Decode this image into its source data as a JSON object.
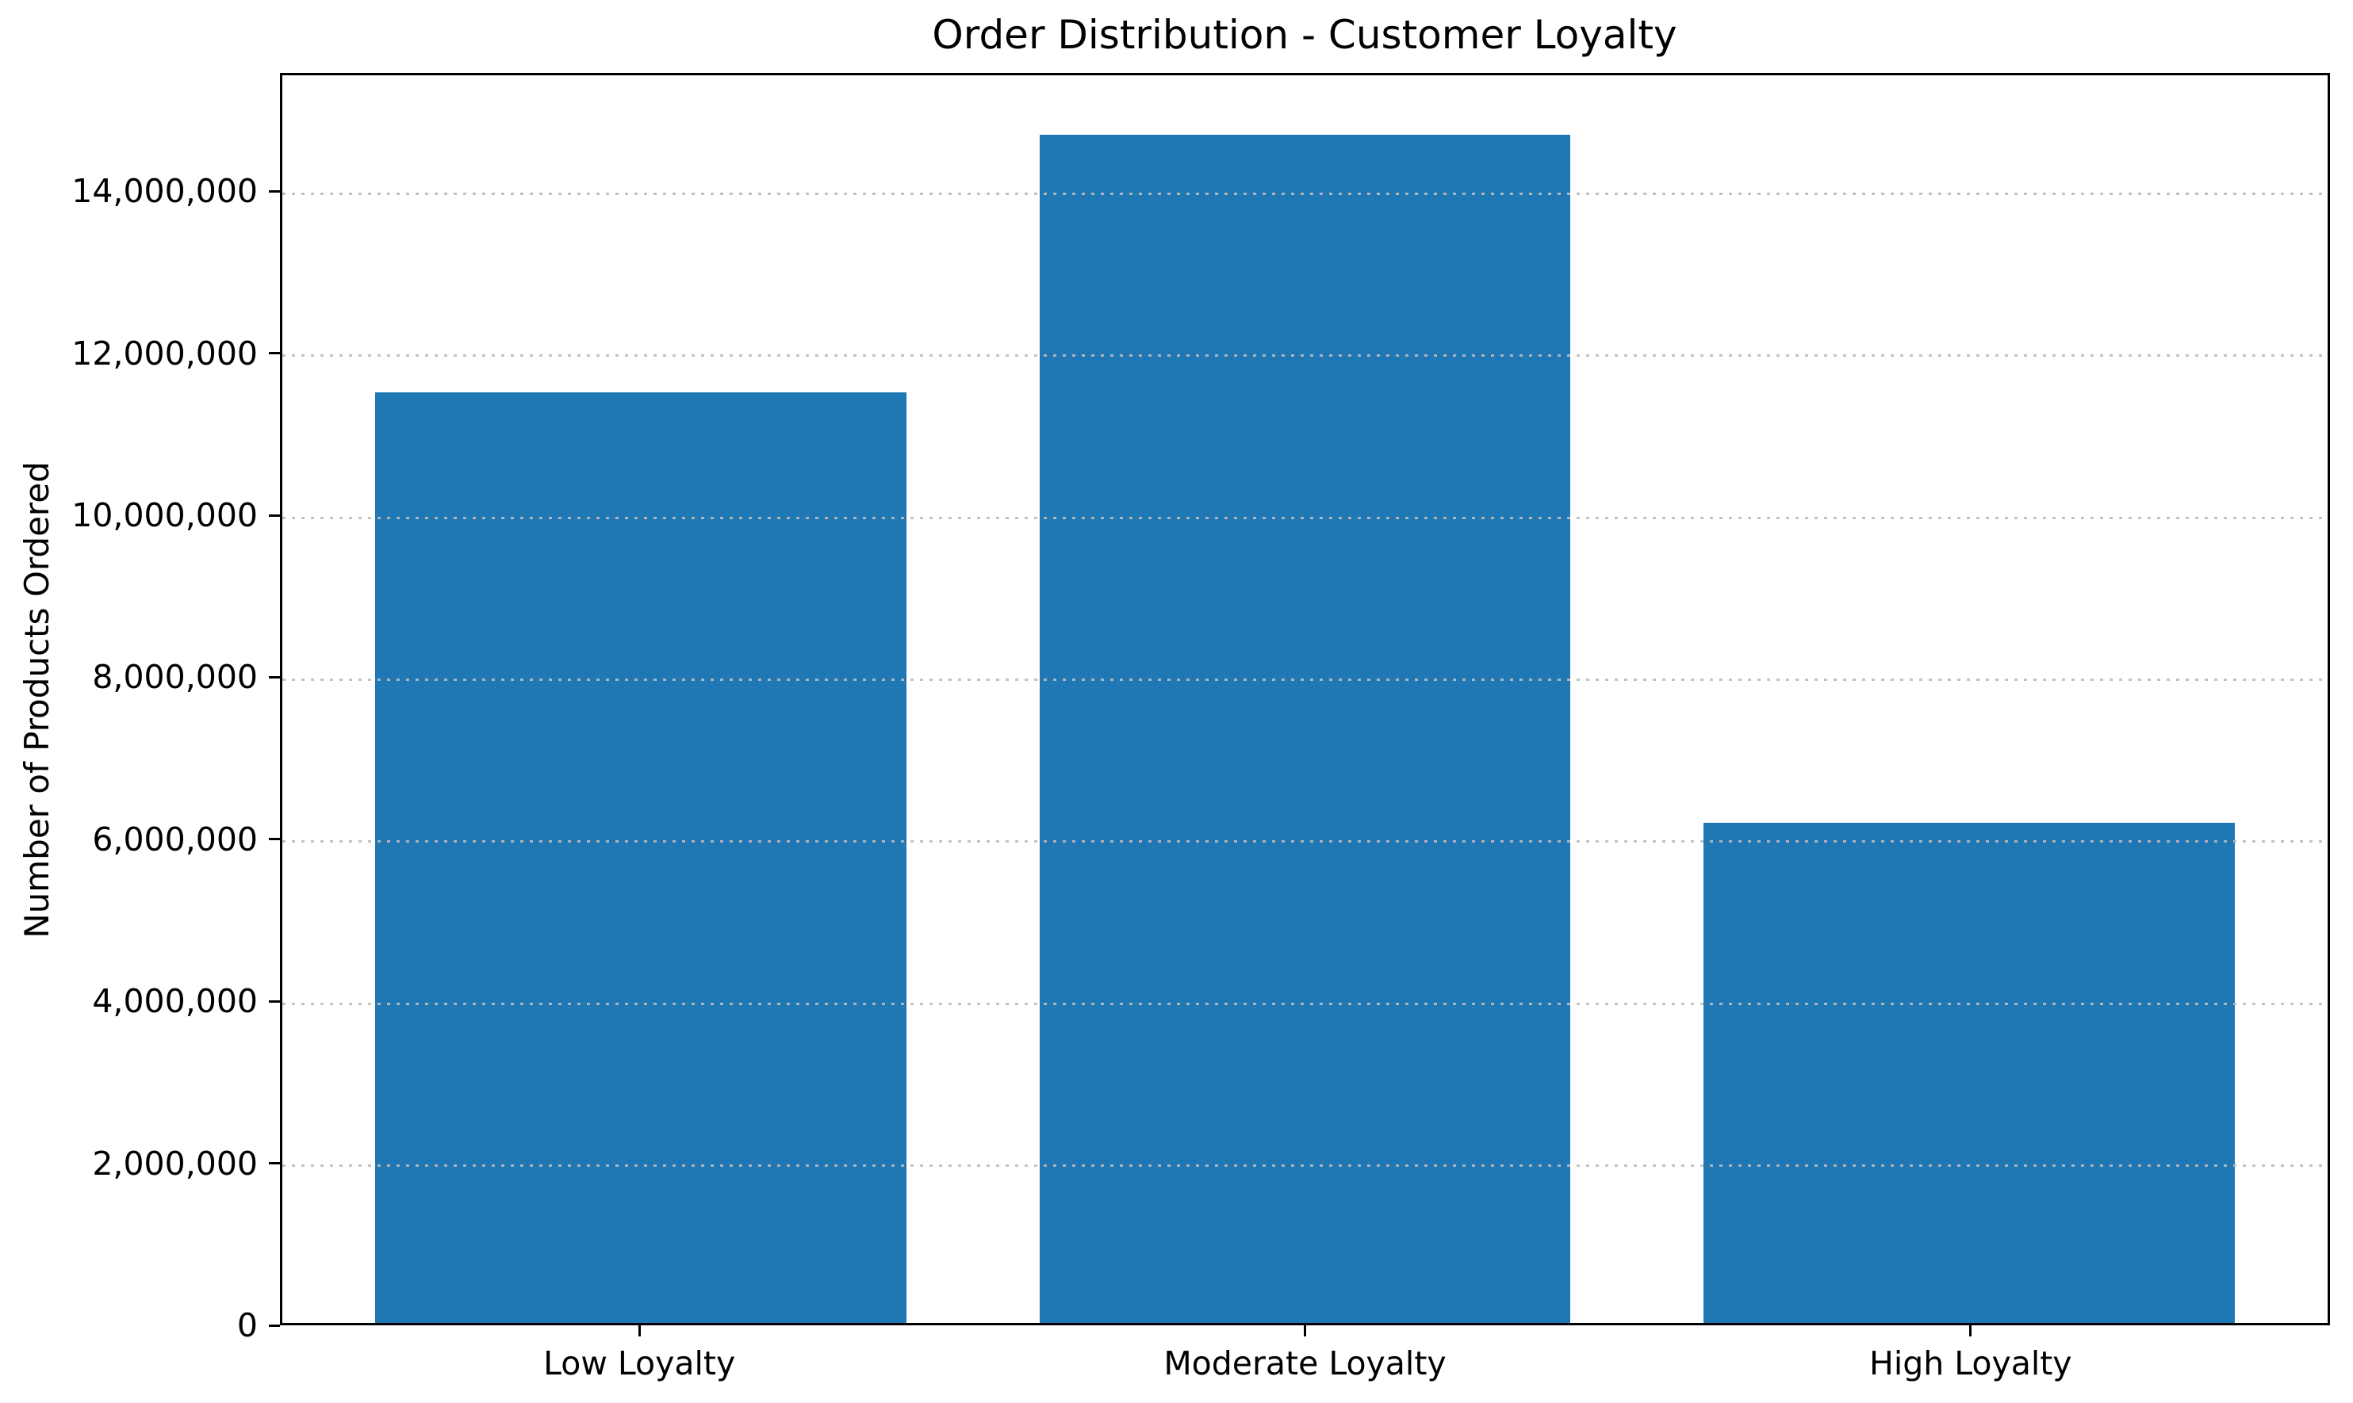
{
  "chart_data": {
    "type": "bar",
    "title": "Order Distribution - Customer Loyalty",
    "xlabel": "",
    "ylabel": "Number of Products Ordered",
    "categories": [
      "Low Loyalty",
      "Moderate Loyalty",
      "High Loyalty"
    ],
    "values": [
      11530000,
      14720000,
      6200000
    ],
    "series": [
      {
        "name": "Number of Products Ordered",
        "values": [
          11530000,
          14720000,
          6200000
        ]
      }
    ],
    "bar_color": "#1f77b4",
    "text_color": "#000000",
    "background": "#ffffff",
    "ylim": [
      0,
      15460000
    ],
    "yticks": [
      {
        "value": 0,
        "label": "0"
      },
      {
        "value": 2000000,
        "label": "2,000,000"
      },
      {
        "value": 4000000,
        "label": "4,000,000"
      },
      {
        "value": 6000000,
        "label": "6,000,000"
      },
      {
        "value": 8000000,
        "label": "8,000,000"
      },
      {
        "value": 10000000,
        "label": "10,000,000"
      },
      {
        "value": 12000000,
        "label": "12,000,000"
      },
      {
        "value": 14000000,
        "label": "14,000,000"
      }
    ],
    "grid": {
      "axis": "y",
      "style": "dotted",
      "color": "#bcbcbc"
    },
    "legend_position": "none"
  }
}
